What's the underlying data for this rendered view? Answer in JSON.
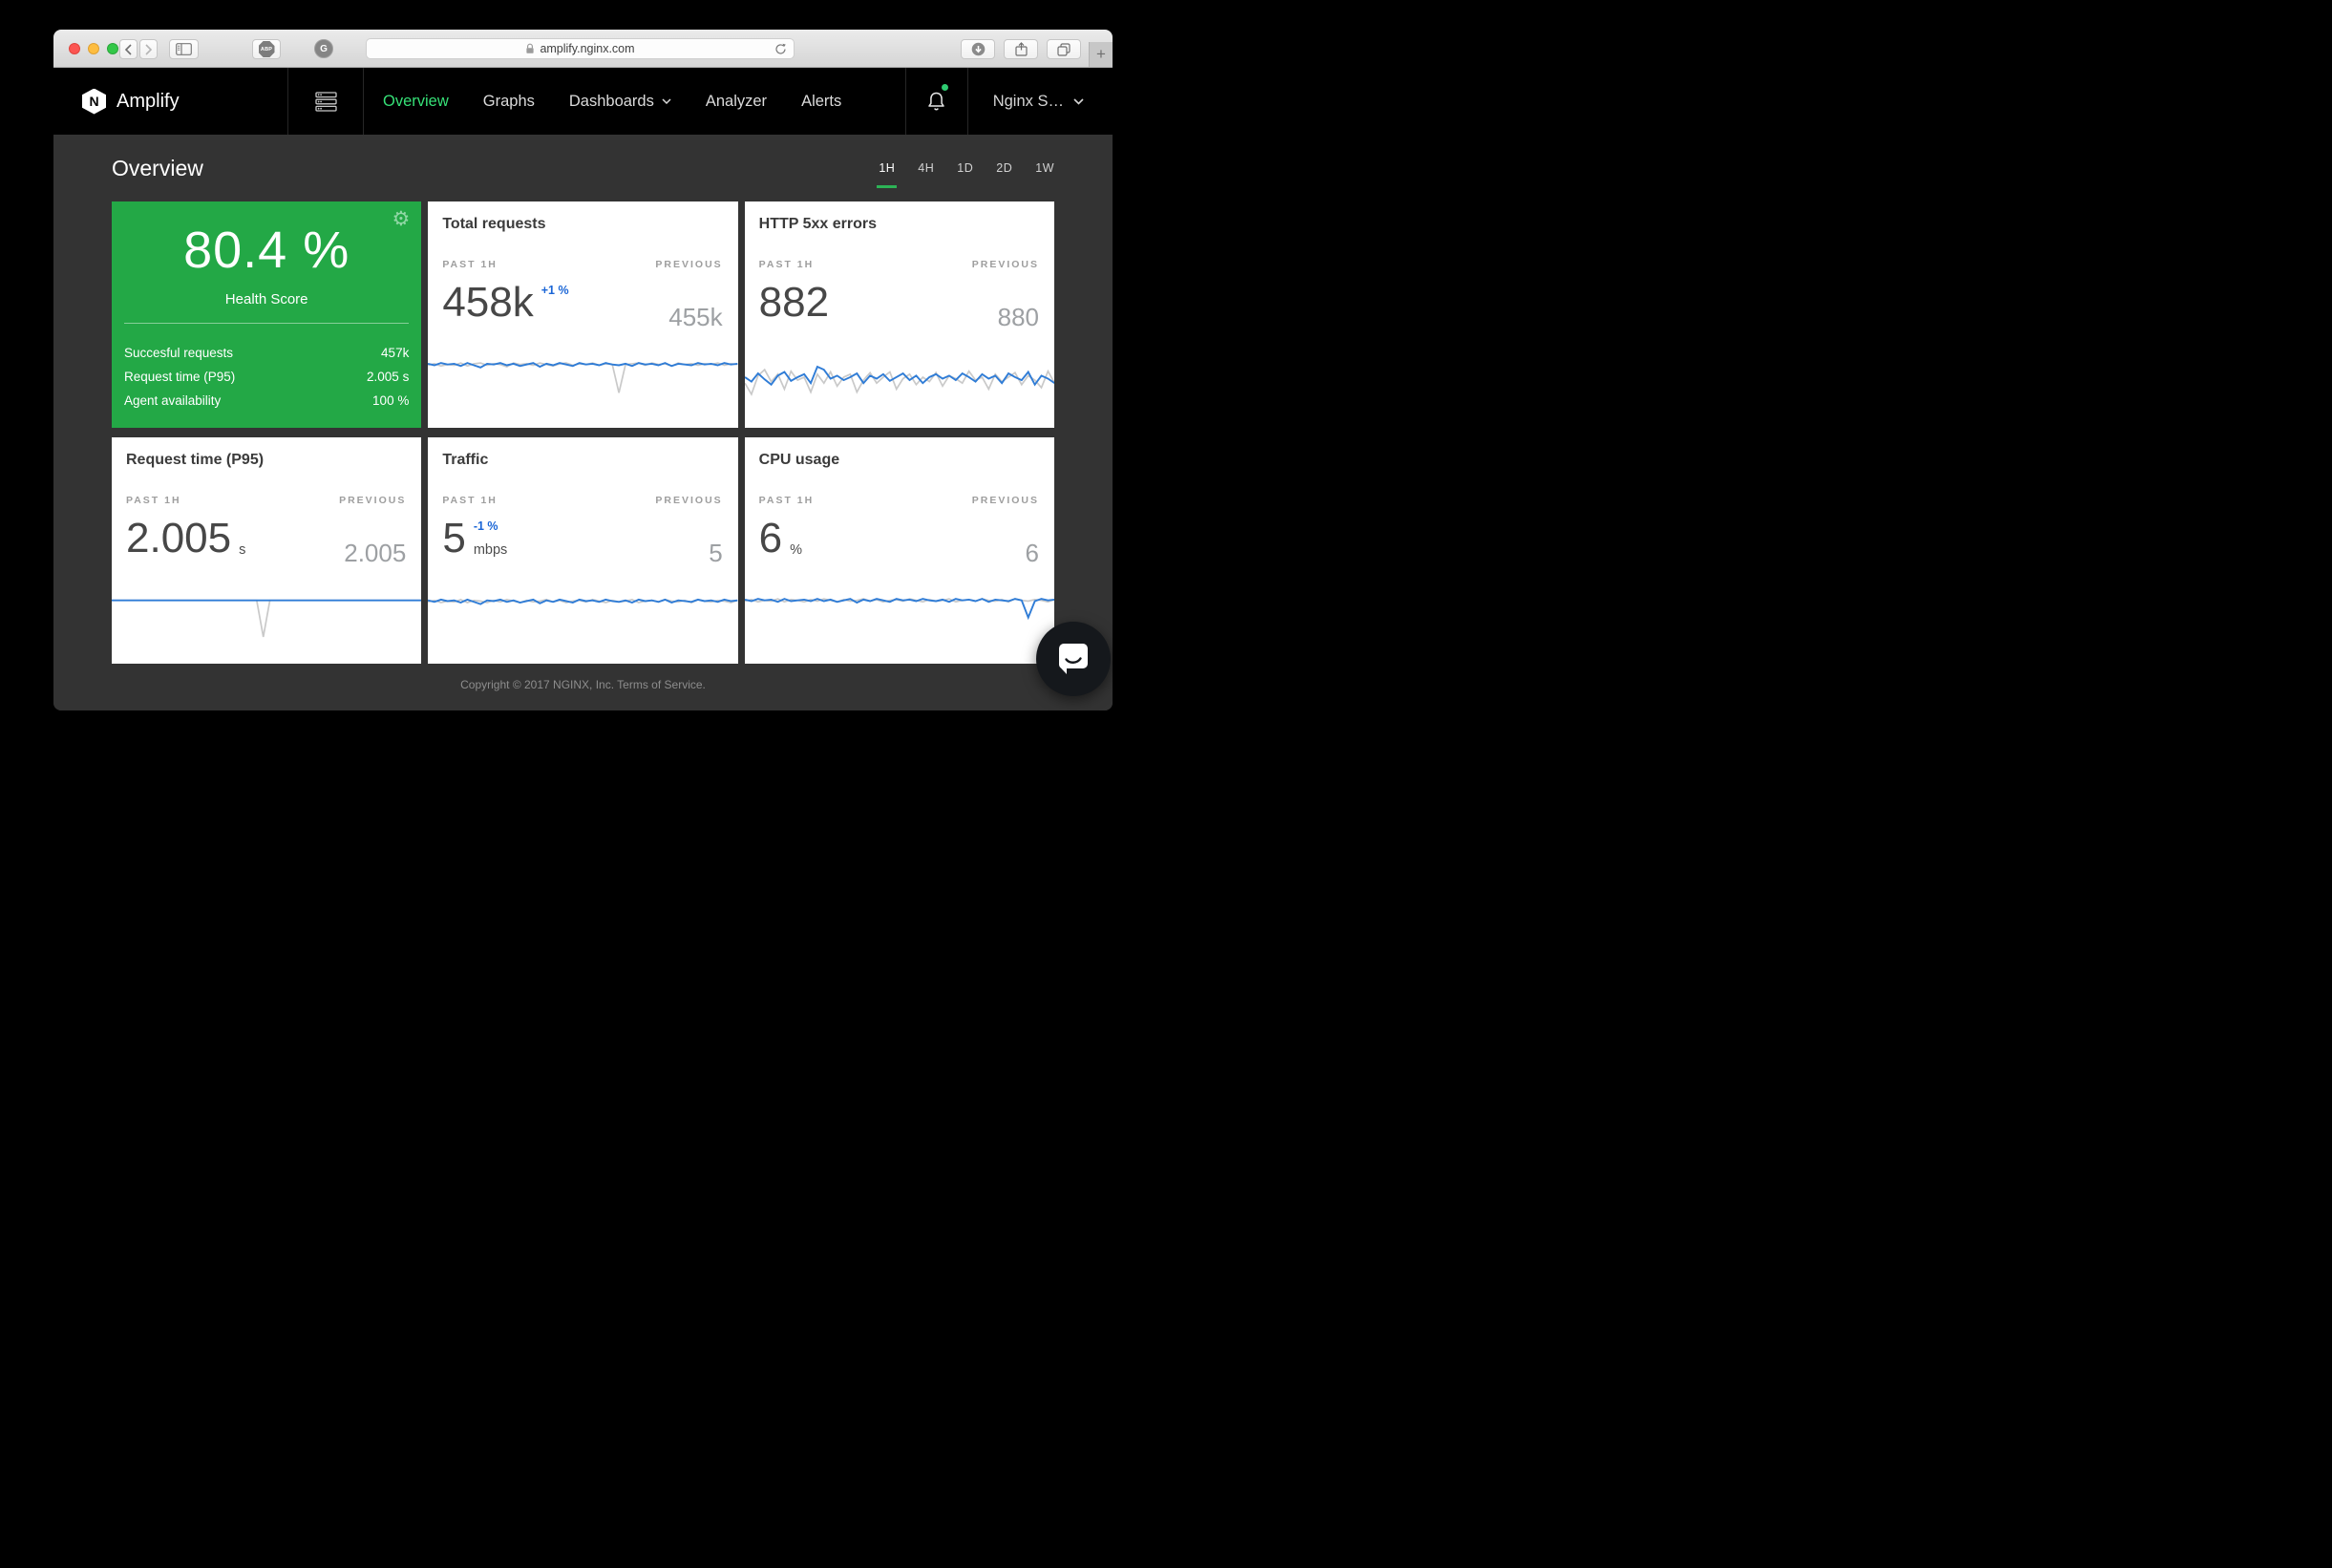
{
  "browser": {
    "url": "amplify.nginx.com",
    "extensions": {
      "adblock_label": "ABP",
      "ghostery_label": "G"
    },
    "new_tab_label": "+"
  },
  "navbar": {
    "brand": "Amplify",
    "logo_letter": "N",
    "items": [
      {
        "label": "Overview",
        "active": true
      },
      {
        "label": "Graphs",
        "active": false
      },
      {
        "label": "Dashboards",
        "active": false,
        "has_caret": true
      },
      {
        "label": "Analyzer",
        "active": false
      },
      {
        "label": "Alerts",
        "active": false
      }
    ],
    "account_label": "Nginx S…"
  },
  "page": {
    "title": "Overview",
    "time_ranges": [
      {
        "label": "1H",
        "active": true
      },
      {
        "label": "4H",
        "active": false
      },
      {
        "label": "1D",
        "active": false
      },
      {
        "label": "2D",
        "active": false
      },
      {
        "label": "1W",
        "active": false
      }
    ],
    "footer_copyright": "Copyright © 2017 NGINX, Inc.",
    "footer_terms": "Terms of Service."
  },
  "health_card": {
    "score": "80.4 %",
    "label": "Health Score",
    "rows": [
      {
        "label": "Succesful requests",
        "value": "457k"
      },
      {
        "label": "Request time (P95)",
        "value": "2.005 s"
      },
      {
        "label": "Agent availability",
        "value": "100 %"
      }
    ]
  },
  "metric_cards": [
    {
      "title": "Total requests",
      "past_label": "PAST 1H",
      "previous_label": "PREVIOUS",
      "value": "458k",
      "change": "+1 %",
      "unit": "",
      "previous": "455k"
    },
    {
      "title": "HTTP 5xx errors",
      "past_label": "PAST 1H",
      "previous_label": "PREVIOUS",
      "value": "882",
      "change": "",
      "unit": "",
      "previous": "880"
    },
    {
      "title": "Request time (P95)",
      "past_label": "PAST 1H",
      "previous_label": "PREVIOUS",
      "value": "2.005",
      "change": "",
      "unit": "s",
      "previous": "2.005"
    },
    {
      "title": "Traffic",
      "past_label": "PAST 1H",
      "previous_label": "PREVIOUS",
      "value": "5",
      "change": "-1 %",
      "unit": "mbps",
      "previous": "5"
    },
    {
      "title": "CPU usage",
      "past_label": "PAST 1H",
      "previous_label": "PREVIOUS",
      "value": "6",
      "change": "",
      "unit": "%",
      "previous": "6"
    }
  ],
  "chart_data": {
    "type": "sparkline",
    "note": "y values are percent of sparkline height, top=0; x evenly spaced over past 1H window",
    "sparklines": {
      "total_requests": {
        "previous": [
          16,
          14,
          17,
          15,
          16,
          13,
          17,
          14,
          13,
          16,
          14,
          15,
          18,
          13,
          15,
          14,
          16,
          13,
          15,
          17,
          14,
          13,
          16,
          14,
          15,
          13,
          16,
          14,
          15,
          53,
          15,
          14,
          13,
          16,
          13,
          15,
          14,
          17,
          13,
          15,
          14,
          16,
          14,
          15,
          13,
          16,
          14,
          15
        ],
        "current": [
          14,
          16,
          13,
          15,
          14,
          17,
          13,
          16,
          19,
          14,
          15,
          13,
          16,
          14,
          17,
          15,
          13,
          18,
          14,
          16,
          13,
          15,
          17,
          13,
          15,
          14,
          16,
          13,
          15,
          16,
          14,
          17,
          13,
          15,
          14,
          16,
          13,
          17,
          14,
          15,
          16,
          13,
          15,
          14,
          16,
          13,
          15,
          14
        ]
      },
      "http_5xx": {
        "previous": [
          40,
          55,
          30,
          22,
          38,
          28,
          48,
          24,
          36,
          32,
          52,
          28,
          40,
          25,
          44,
          32,
          28,
          52,
          36,
          26,
          40,
          32,
          25,
          48,
          34,
          28,
          42,
          32,
          38,
          26,
          44,
          30,
          34,
          40,
          24,
          36,
          32,
          48,
          28,
          38,
          32,
          26,
          42,
          30,
          36,
          46,
          24,
          40
        ],
        "current": [
          32,
          38,
          27,
          35,
          42,
          30,
          25,
          37,
          32,
          28,
          40,
          18,
          22,
          34,
          30,
          36,
          32,
          27,
          40,
          30,
          34,
          28,
          37,
          32,
          27,
          36,
          30,
          40,
          32,
          28,
          34,
          30,
          36,
          27,
          32,
          38,
          28,
          34,
          30,
          40,
          27,
          32,
          36,
          25,
          42,
          30,
          34,
          40
        ]
      },
      "request_time": {
        "previous": [
          15,
          15,
          15,
          15,
          15,
          15,
          15,
          15,
          15,
          15,
          15,
          15,
          15,
          15,
          15,
          15,
          15,
          15,
          15,
          15,
          15,
          15,
          15,
          64,
          15,
          15,
          15,
          15,
          15,
          15,
          15,
          15,
          15,
          15,
          15,
          15,
          15,
          15,
          15,
          15,
          15,
          15,
          15,
          15,
          15,
          15,
          15,
          15
        ],
        "current": [
          15,
          15,
          15,
          15,
          15,
          15,
          15,
          15,
          15,
          15,
          15,
          15,
          15,
          15,
          15,
          15,
          15,
          15,
          15,
          15,
          15,
          15,
          15,
          15,
          15,
          15,
          15,
          15,
          15,
          15,
          15,
          15,
          15,
          15,
          15,
          15,
          15,
          15,
          15,
          15,
          15,
          15,
          15,
          15,
          15,
          15,
          15,
          15
        ]
      },
      "traffic": {
        "previous": [
          17,
          15,
          18,
          16,
          17,
          14,
          18,
          15,
          16,
          18,
          15,
          17,
          14,
          16,
          18,
          15,
          17,
          16,
          14,
          17,
          15,
          18,
          16,
          15,
          17,
          14,
          16,
          18,
          15,
          17,
          16,
          14,
          18,
          16,
          15,
          17,
          14,
          16,
          17,
          15,
          18,
          14,
          16,
          17,
          15,
          16,
          18,
          15
        ],
        "current": [
          15,
          17,
          14,
          16,
          15,
          18,
          14,
          17,
          20,
          15,
          16,
          14,
          17,
          15,
          18,
          16,
          14,
          19,
          15,
          17,
          14,
          16,
          18,
          14,
          16,
          15,
          17,
          14,
          16,
          17,
          15,
          18,
          14,
          16,
          15,
          17,
          14,
          18,
          15,
          16,
          17,
          14,
          16,
          15,
          17,
          14,
          16,
          15
        ]
      },
      "cpu": {
        "previous": [
          16,
          14,
          17,
          15,
          16,
          13,
          17,
          14,
          15,
          17,
          14,
          16,
          13,
          15,
          17,
          14,
          16,
          15,
          13,
          16,
          14,
          17,
          15,
          14,
          16,
          13,
          15,
          17,
          14,
          16,
          15,
          13,
          17,
          15,
          14,
          16,
          13,
          15,
          16,
          14,
          17,
          13,
          15,
          16,
          14,
          15,
          17,
          14
        ],
        "current": [
          14,
          16,
          13,
          15,
          14,
          17,
          13,
          16,
          15,
          14,
          16,
          13,
          16,
          14,
          17,
          15,
          13,
          18,
          14,
          16,
          13,
          15,
          17,
          13,
          15,
          14,
          16,
          13,
          15,
          16,
          14,
          17,
          13,
          15,
          14,
          16,
          13,
          17,
          14,
          15,
          16,
          13,
          15,
          38,
          16,
          13,
          15,
          14
        ]
      }
    }
  },
  "colors": {
    "accent_green": "#23A846",
    "nav_active_green": "#36E077",
    "underline_green": "#2CB356",
    "notification_green": "#2ECC71",
    "change_blue": "#1B66D6",
    "chart_current": "#2F7CD6",
    "chart_previous": "#C9C9C9",
    "navbar_bg": "#000000",
    "content_bg": "#333333",
    "card_bg": "#FFFFFF",
    "traffic_red": "#FC5552",
    "traffic_yellow": "#FDBD40",
    "traffic_green": "#33C748"
  }
}
